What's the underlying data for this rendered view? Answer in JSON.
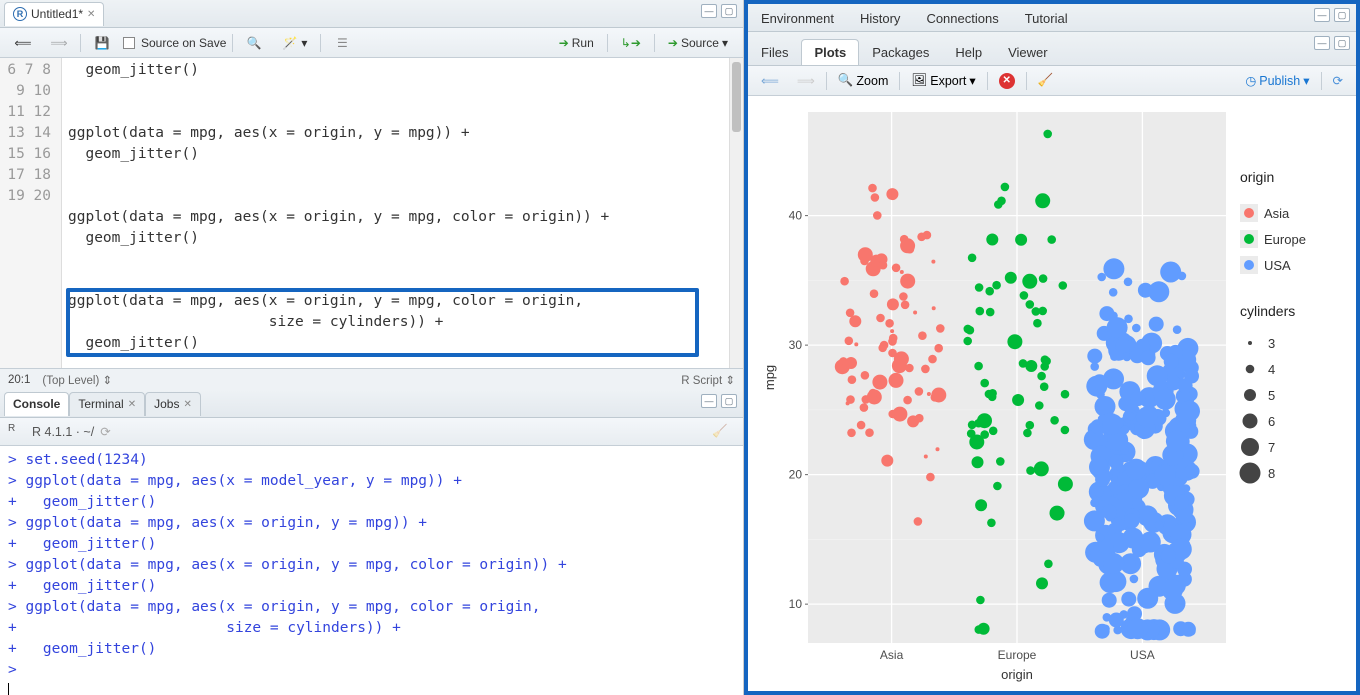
{
  "editor": {
    "tab_title": "Untitled1*",
    "source_on_save": "Source on Save",
    "run": "Run",
    "source": "Source",
    "status_left": "20:1",
    "scope": "(Top Level)",
    "lang": "R Script",
    "gutter_start": 6,
    "gutter_end": 20,
    "lines": [
      "  geom_jitter()",
      "",
      "",
      "ggplot(data = mpg, aes(x = origin, y = mpg)) +",
      "  geom_jitter()",
      "",
      "",
      "ggplot(data = mpg, aes(x = origin, y = mpg, color = origin)) +",
      "  geom_jitter()",
      "",
      "",
      "ggplot(data = mpg, aes(x = origin, y = mpg, color = origin,",
      "                       size = cylinders)) +",
      "  geom_jitter()",
      ""
    ],
    "highlight": {
      "from": 17,
      "to": 19
    }
  },
  "console": {
    "tabs": [
      "Console",
      "Terminal",
      "Jobs"
    ],
    "prompt_label": "R 4.1.1 · ~/",
    "lines": [
      "> set.seed(1234)",
      "> ggplot(data = mpg, aes(x = model_year, y = mpg)) +",
      "+   geom_jitter()",
      "> ggplot(data = mpg, aes(x = origin, y = mpg)) +",
      "+   geom_jitter()",
      "> ggplot(data = mpg, aes(x = origin, y = mpg, color = origin)) +",
      "+   geom_jitter()",
      "> ggplot(data = mpg, aes(x = origin, y = mpg, color = origin,",
      "+                        size = cylinders)) +",
      "+   geom_jitter()",
      "> "
    ]
  },
  "right": {
    "env_tabs": [
      "Environment",
      "History",
      "Connections",
      "Tutorial"
    ],
    "file_tabs": [
      "Files",
      "Plots",
      "Packages",
      "Help",
      "Viewer"
    ],
    "active_file_tab": "Plots",
    "zoom": "Zoom",
    "export": "Export",
    "publish": "Publish"
  },
  "plot": {
    "panel_bg": "#ebebeb",
    "grid_color": "#ffffff",
    "x_title": "origin",
    "y_title": "mpg",
    "x_categories": [
      "Asia",
      "Europe",
      "USA"
    ],
    "x_centers": [
      0.2,
      0.5,
      0.8
    ],
    "y_breaks": [
      10,
      20,
      30,
      40
    ],
    "y_range": [
      7,
      48
    ],
    "colors": {
      "Asia": "#f8766d",
      "Europe": "#00ba38",
      "USA": "#619cff"
    },
    "legend_origin_title": "origin",
    "legend_origin": [
      "Asia",
      "Europe",
      "USA"
    ],
    "legend_cyl_title": "cylinders",
    "legend_cyl": [
      3,
      4,
      5,
      6,
      7,
      8
    ],
    "cyl_radius": {
      "3": 2.0,
      "4": 4.3,
      "5": 6.0,
      "6": 7.5,
      "7": 9.0,
      "8": 10.5
    },
    "point_alpha": 1.0,
    "fontsize_axis": 12,
    "fontsize_title": 13,
    "counts_hint": {
      "Asia": 79,
      "Europe": 70,
      "USA": 249
    },
    "jitter_seed": 1234,
    "asia_dist": {
      "mean": 30,
      "sd": 6,
      "cyl": [
        3,
        4,
        4,
        4,
        4,
        4,
        4,
        5,
        6
      ]
    },
    "europe_dist": {
      "mean": 27,
      "sd": 7,
      "cyl": [
        4,
        4,
        4,
        4,
        4,
        4,
        5,
        6
      ]
    },
    "usa_dist": {
      "mean": 20,
      "sd": 7,
      "cyl": [
        4,
        4,
        6,
        6,
        6,
        6,
        8,
        8,
        8,
        8
      ]
    }
  }
}
